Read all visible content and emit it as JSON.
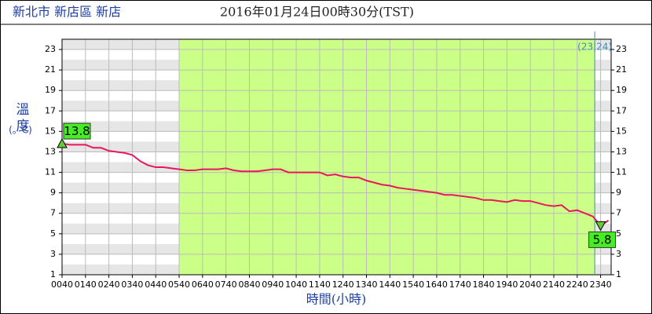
{
  "chart_data": {
    "type": "line",
    "location": "新北市 新店區 新店",
    "title": "2016年01月24日00時30分(TST)",
    "y_label": "溫度",
    "y_unit": "(。C)",
    "x_label": "時間(小時)",
    "x": [
      40,
      60,
      80,
      100,
      120,
      140,
      160,
      180,
      200,
      220,
      240,
      260,
      280,
      300,
      320,
      340,
      360,
      380,
      400,
      420,
      440,
      460,
      480,
      500,
      520,
      540,
      560,
      580,
      600,
      620,
      640,
      660,
      680,
      700,
      720,
      740,
      760,
      780,
      800,
      820,
      840,
      860,
      880,
      900,
      920,
      940,
      960,
      980,
      1000,
      1020,
      1040,
      1060,
      1080,
      1100,
      1120,
      1140,
      1160,
      1180,
      1200,
      1220,
      1240,
      1260,
      1280,
      1300,
      1320,
      1340,
      1360,
      1380,
      1400,
      1420,
      1440
    ],
    "series": [
      {
        "name": "溫度",
        "color": "#e8175d",
        "values": [
          13.8,
          13.7,
          13.7,
          13.7,
          13.4,
          13.4,
          13.1,
          13.0,
          12.9,
          12.7,
          12.1,
          11.7,
          11.5,
          11.5,
          11.4,
          11.3,
          11.2,
          11.2,
          11.3,
          11.3,
          11.3,
          11.4,
          11.2,
          11.1,
          11.1,
          11.1,
          11.2,
          11.3,
          11.3,
          11.0,
          11.0,
          11.0,
          11.0,
          11.0,
          10.7,
          10.8,
          10.6,
          10.5,
          10.5,
          10.2,
          10.0,
          9.8,
          9.7,
          9.5,
          9.4,
          9.3,
          9.2,
          9.1,
          9.0,
          8.8,
          8.8,
          8.7,
          8.6,
          8.5,
          8.3,
          8.3,
          8.2,
          8.1,
          8.3,
          8.2,
          8.2,
          8.0,
          7.8,
          7.7,
          7.8,
          7.2,
          7.3,
          7.0,
          6.7,
          5.8,
          6.3
        ]
      }
    ],
    "max_point": {
      "x": 40,
      "value": 13.8
    },
    "min_point": {
      "x": 1420,
      "value": 5.8
    },
    "shaded_region": [
      340,
      1405
    ],
    "day_divider": {
      "x": 1405,
      "label": "(23|24)"
    },
    "xlim": [
      40,
      1447
    ],
    "xticks": [
      {
        "value": 40,
        "label": "0040"
      },
      {
        "value": 100,
        "label": "0140"
      },
      {
        "value": 160,
        "label": "0240"
      },
      {
        "value": 220,
        "label": "0340"
      },
      {
        "value": 280,
        "label": "0440"
      },
      {
        "value": 340,
        "label": "0540"
      },
      {
        "value": 400,
        "label": "0640"
      },
      {
        "value": 460,
        "label": "0740"
      },
      {
        "value": 520,
        "label": "0840"
      },
      {
        "value": 580,
        "label": "0940"
      },
      {
        "value": 640,
        "label": "1040"
      },
      {
        "value": 700,
        "label": "1140"
      },
      {
        "value": 760,
        "label": "1240"
      },
      {
        "value": 820,
        "label": "1340"
      },
      {
        "value": 880,
        "label": "1440"
      },
      {
        "value": 940,
        "label": "1540"
      },
      {
        "value": 1000,
        "label": "1640"
      },
      {
        "value": 1060,
        "label": "1740"
      },
      {
        "value": 1120,
        "label": "1840"
      },
      {
        "value": 1180,
        "label": "1940"
      },
      {
        "value": 1240,
        "label": "2040"
      },
      {
        "value": 1300,
        "label": "2140"
      },
      {
        "value": 1360,
        "label": "2240"
      },
      {
        "value": 1420,
        "label": "2340"
      }
    ],
    "ylim": [
      1,
      24
    ],
    "yticks": [
      1,
      3,
      5,
      7,
      9,
      11,
      13,
      15,
      17,
      19,
      21,
      23
    ],
    "grid": true
  }
}
